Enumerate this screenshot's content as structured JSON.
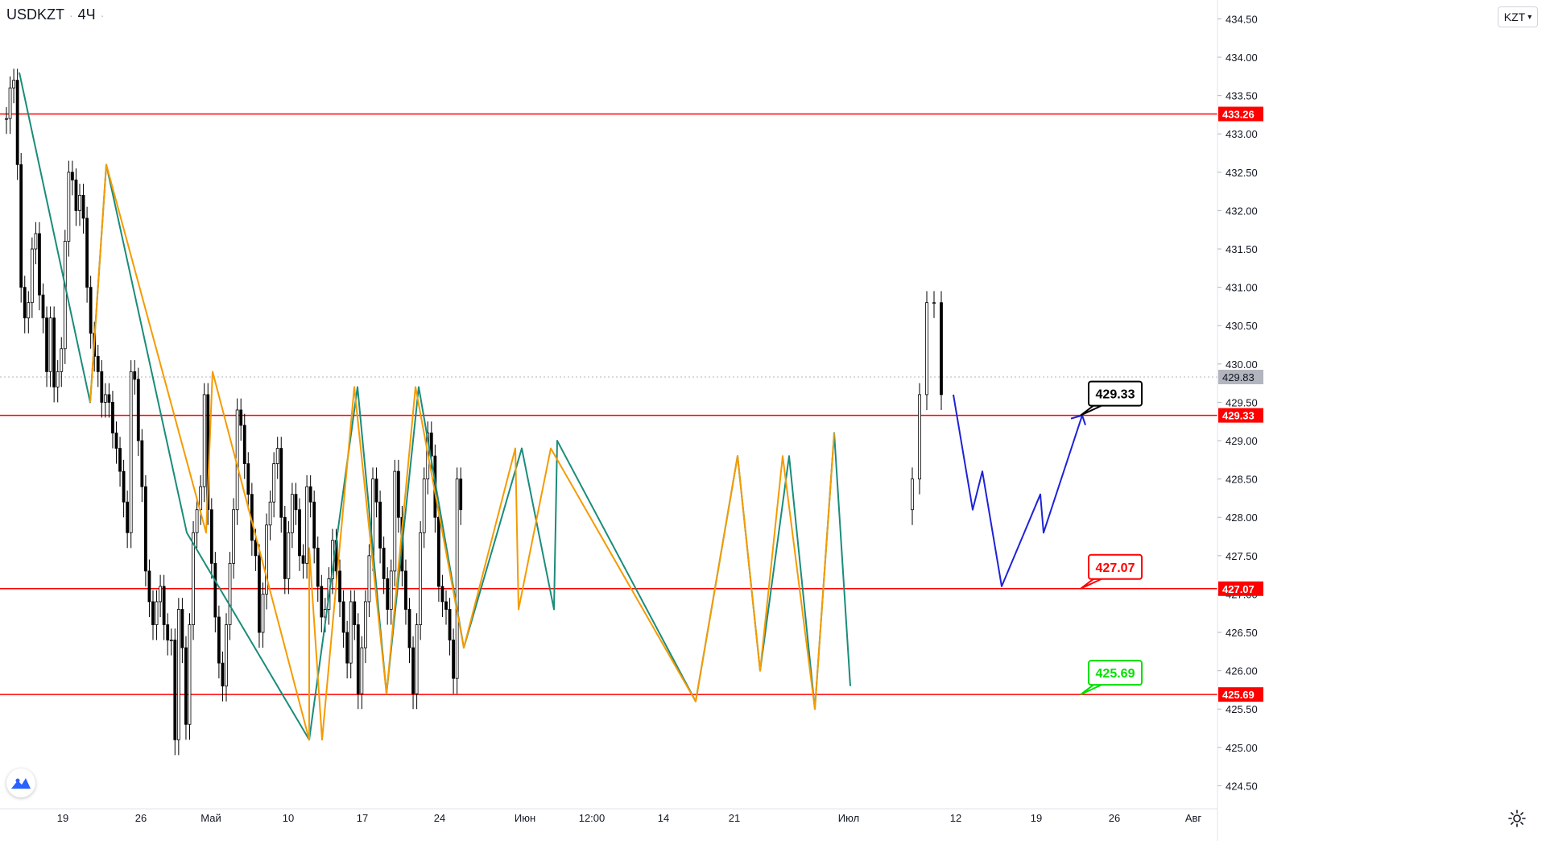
{
  "header": {
    "symbol": "USDKZT",
    "interval": "4Ч"
  },
  "scale": {
    "currency": "KZT"
  },
  "chart_data": {
    "type": "candlestick",
    "symbol": "USDKZT",
    "interval": "4Ч",
    "ylim": [
      424.2,
      434.7
    ],
    "y_ticks": [
      "424.50",
      "425.00",
      "425.50",
      "426.00",
      "426.50",
      "427.00",
      "427.50",
      "428.00",
      "428.50",
      "429.00",
      "429.50",
      "430.00",
      "430.50",
      "431.00",
      "431.50",
      "432.00",
      "432.50",
      "433.00",
      "433.50",
      "434.00",
      "434.50"
    ],
    "x_ticks": [
      "19",
      "26",
      "Май",
      "10",
      "17",
      "24",
      "Июн",
      "12:00",
      "14",
      "21",
      "Июл",
      "12",
      "19",
      "26",
      "Авг"
    ],
    "last_price": {
      "value": 429.83,
      "label": "429.83"
    },
    "levels": [
      {
        "value": 433.26,
        "label": "433.26",
        "color": "#ff0000"
      },
      {
        "value": 429.33,
        "label": "429.33",
        "color": "#ff0000"
      },
      {
        "value": 427.07,
        "label": "427.07",
        "color": "#ff0000"
      },
      {
        "value": 425.69,
        "label": "425.69",
        "color": "#ff0000"
      }
    ],
    "callouts": [
      {
        "value": 429.33,
        "label": "429.33",
        "color": "#000000"
      },
      {
        "value": 427.07,
        "label": "427.07",
        "color": "#ff0000"
      },
      {
        "value": 425.69,
        "label": "425.69",
        "color": "#00e000"
      }
    ],
    "candles_close": [
      433.2,
      433.6,
      433.7,
      432.6,
      431.0,
      430.6,
      430.8,
      431.5,
      431.7,
      430.9,
      430.6,
      429.9,
      430.6,
      429.7,
      429.9,
      430.2,
      431.6,
      432.5,
      432.4,
      432.0,
      432.2,
      431.9,
      431.0,
      430.4,
      430.1,
      429.9,
      429.5,
      429.6,
      429.5,
      429.1,
      428.9,
      428.6,
      428.2,
      427.8,
      429.9,
      429.8,
      429.0,
      428.4,
      427.3,
      426.9,
      426.6,
      426.9,
      427.1,
      426.6,
      426.4,
      426.4,
      425.1,
      426.8,
      426.3,
      425.3,
      426.6,
      427.8,
      428.1,
      428.4,
      429.6,
      428.1,
      427.4,
      426.7,
      426.1,
      425.8,
      426.6,
      427.4,
      428.1,
      429.4,
      429.2,
      428.7,
      428.3,
      427.7,
      427.5,
      426.5,
      427.0,
      427.9,
      428.2,
      428.7,
      428.9,
      428.0,
      427.2,
      427.8,
      428.3,
      428.1,
      427.5,
      427.4,
      428.4,
      428.2,
      427.6,
      427.1,
      426.7,
      426.8,
      427.2,
      427.7,
      427.3,
      426.9,
      426.5,
      426.1,
      426.9,
      426.6,
      425.7,
      426.3,
      426.9,
      427.5,
      428.5,
      428.2,
      427.6,
      427.2,
      426.8,
      427.3,
      428.6,
      428.0,
      427.3,
      426.8,
      426.3,
      425.7,
      426.6,
      427.8,
      428.5,
      429.1,
      428.8,
      428.0,
      427.1,
      426.9,
      426.8,
      426.4,
      425.9,
      428.5,
      428.1,
      428.5,
      429.6,
      430.8,
      430.8,
      429.6
    ],
    "zigzag_teal": [
      [
        4,
        433.8
      ],
      [
        26,
        429.5
      ],
      [
        31,
        432.6
      ],
      [
        56,
        427.8
      ],
      [
        94,
        425.1
      ],
      [
        109,
        429.7
      ],
      [
        118,
        425.7
      ],
      [
        128,
        429.7
      ],
      [
        142,
        426.3
      ],
      [
        160,
        428.9
      ],
      [
        170,
        426.8
      ],
      [
        171,
        429.0
      ],
      [
        214,
        425.6
      ],
      [
        227,
        428.8
      ],
      [
        234,
        426.0
      ],
      [
        243,
        428.8
      ],
      [
        251,
        425.5
      ],
      [
        257,
        429.1
      ],
      [
        262,
        425.8
      ]
    ],
    "zigzag_orange": [
      [
        26,
        429.5
      ],
      [
        31,
        432.6
      ],
      [
        62,
        427.8
      ],
      [
        64,
        429.9
      ],
      [
        94,
        425.1
      ],
      [
        94,
        427.6
      ],
      [
        98,
        425.1
      ],
      [
        108,
        429.7
      ],
      [
        118,
        425.7
      ],
      [
        127,
        429.7
      ],
      [
        142,
        426.3
      ],
      [
        158,
        428.9
      ],
      [
        159,
        426.8
      ],
      [
        169,
        428.9
      ],
      [
        214,
        425.6
      ],
      [
        227,
        428.8
      ],
      [
        234,
        426.0
      ],
      [
        241,
        428.8
      ],
      [
        251,
        425.5
      ],
      [
        257,
        429.1
      ]
    ],
    "forecast_path": [
      [
        294,
        429.6
      ],
      [
        300,
        428.1
      ],
      [
        303,
        428.6
      ],
      [
        309,
        427.1
      ],
      [
        321,
        428.3
      ],
      [
        322,
        427.8
      ],
      [
        334,
        429.33
      ]
    ]
  }
}
